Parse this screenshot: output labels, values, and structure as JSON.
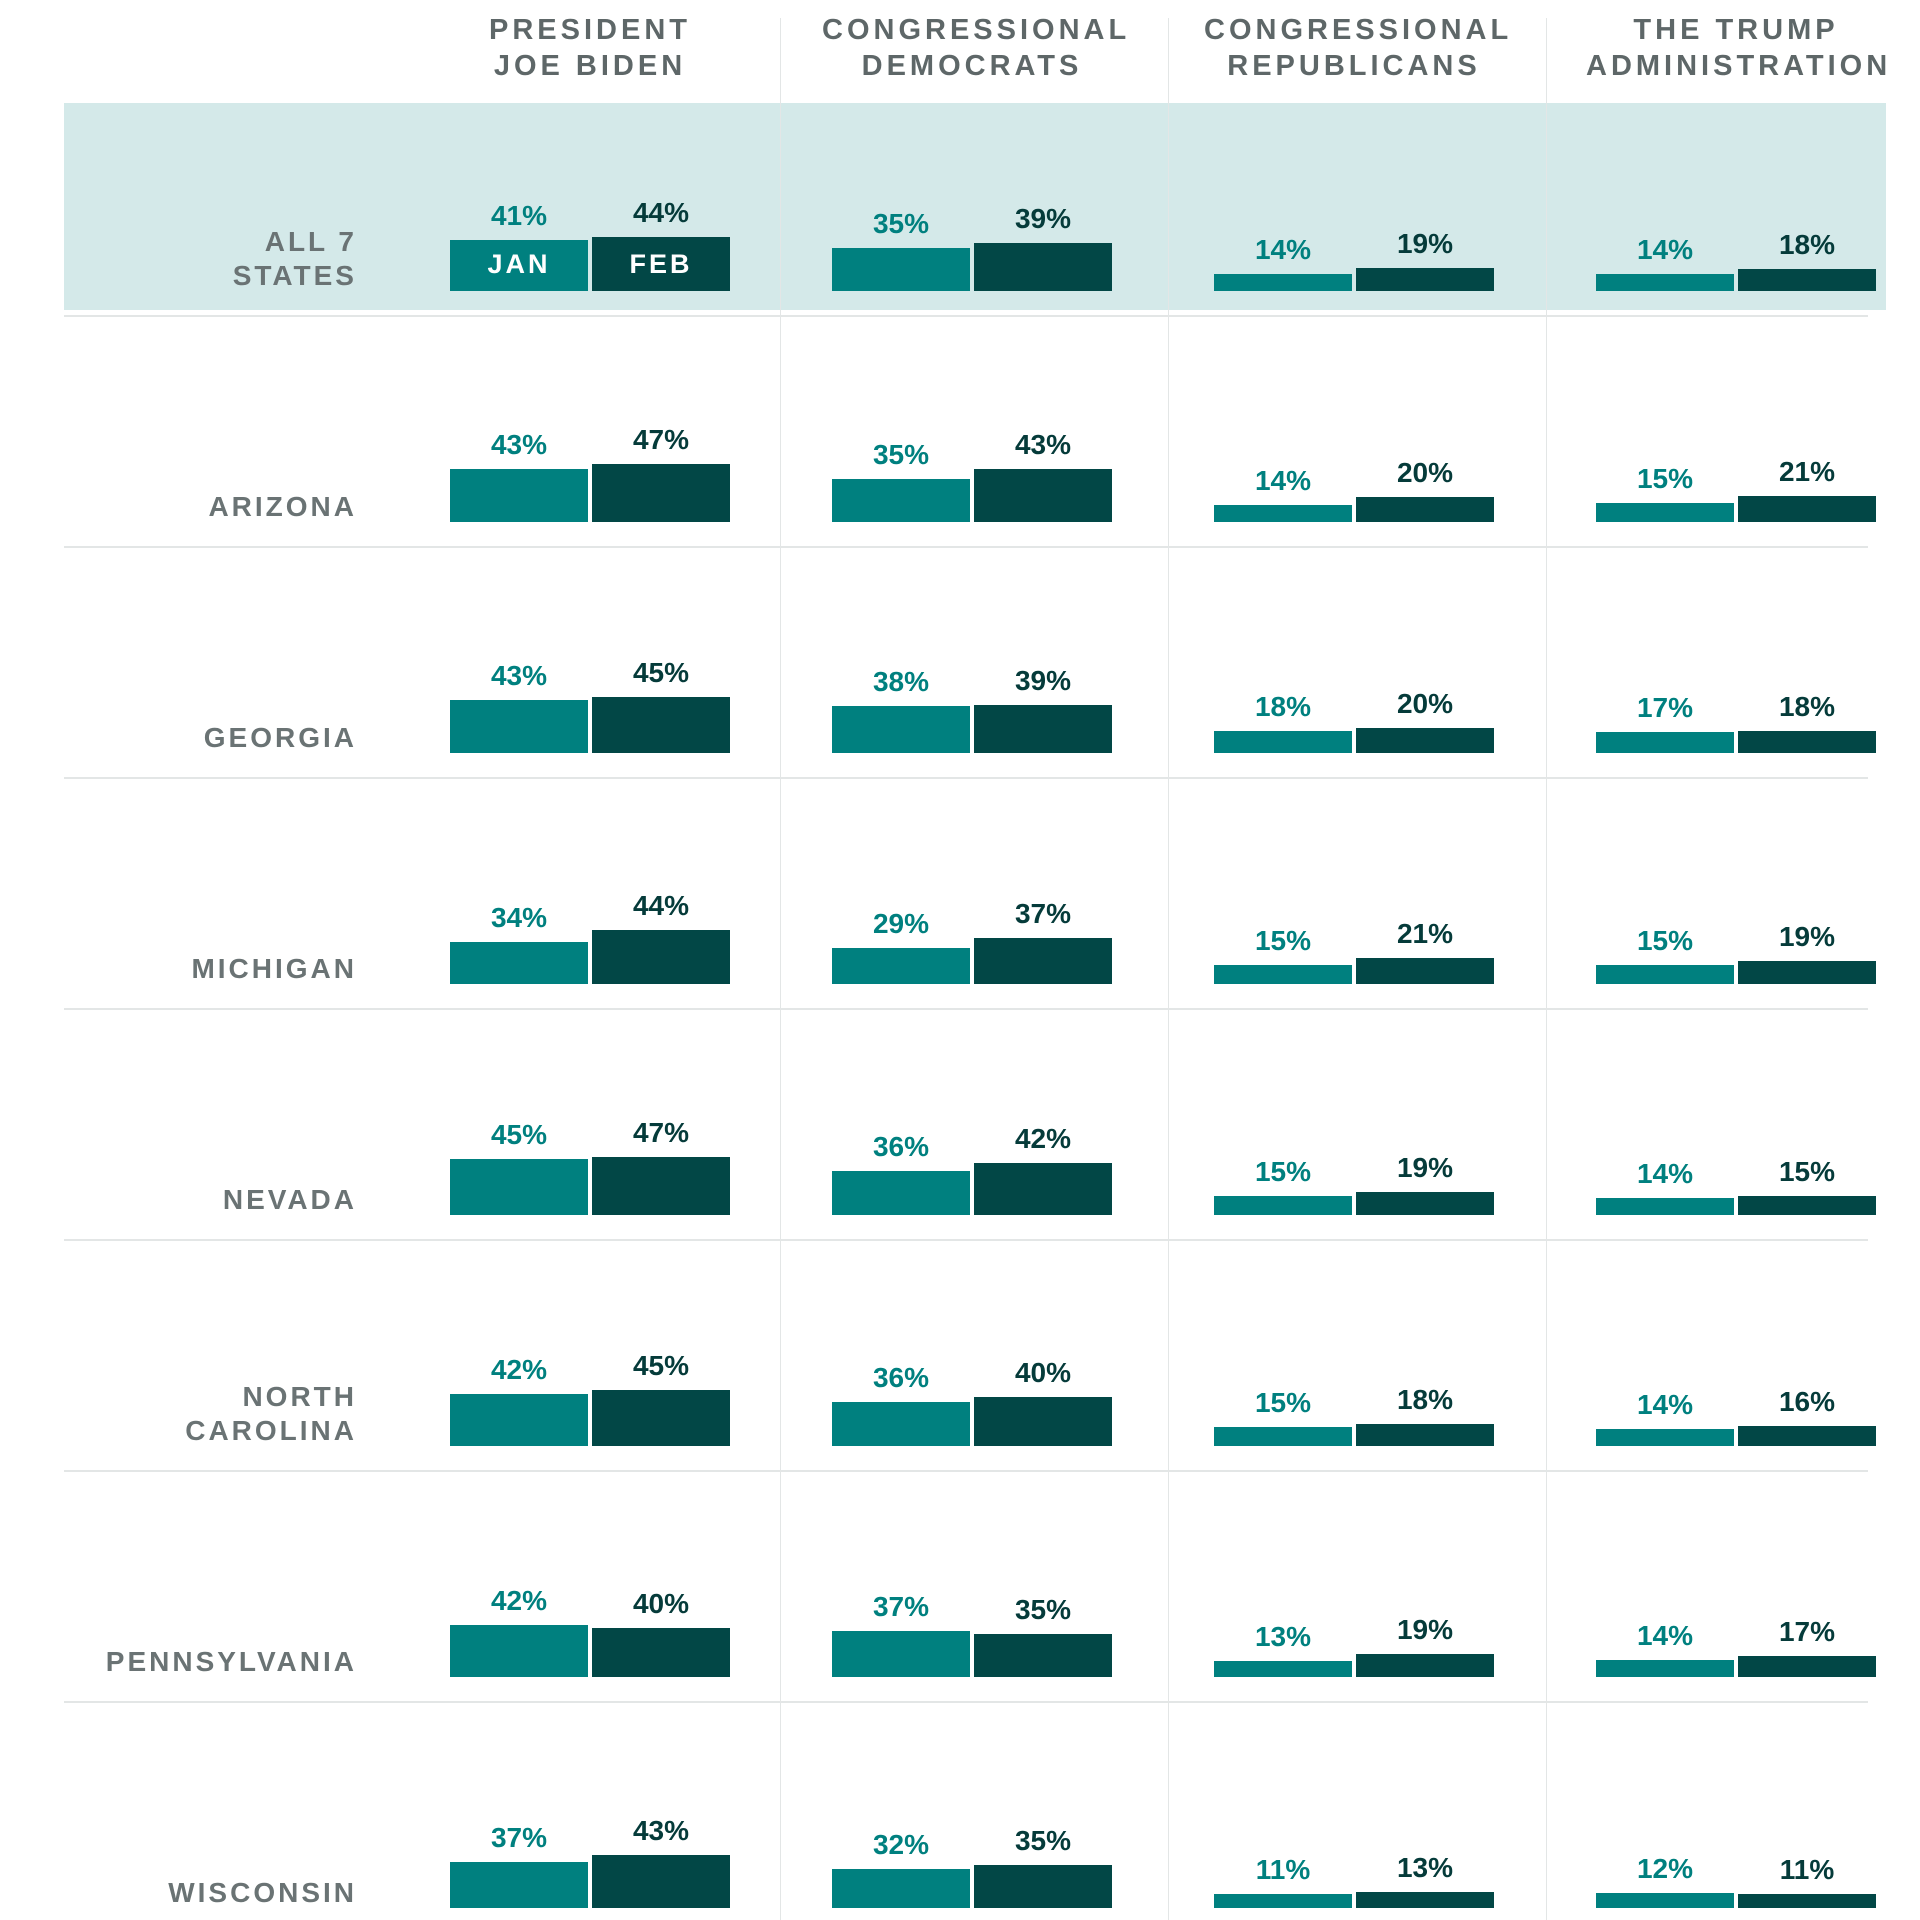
{
  "chart_data": {
    "type": "bar",
    "columns": [
      {
        "label_lines": [
          "PRESIDENT",
          "JOE BIDEN"
        ]
      },
      {
        "label_lines": [
          "CONGRESSIONAL",
          "DEMOCRATS"
        ]
      },
      {
        "label_lines": [
          "CONGRESSIONAL",
          "REPUBLICANS"
        ]
      },
      {
        "label_lines": [
          "THE TRUMP",
          "ADMINISTRATION"
        ]
      }
    ],
    "series": [
      {
        "name": "JAN",
        "color": "#00807f"
      },
      {
        "name": "FEB",
        "color": "#024746"
      }
    ],
    "rows": [
      {
        "label_lines": [
          "ALL 7",
          "STATES"
        ],
        "highlight": true,
        "values": [
          [
            41,
            44
          ],
          [
            35,
            39
          ],
          [
            14,
            19
          ],
          [
            14,
            18
          ]
        ]
      },
      {
        "label_lines": [
          "ARIZONA"
        ],
        "values": [
          [
            43,
            47
          ],
          [
            35,
            43
          ],
          [
            14,
            20
          ],
          [
            15,
            21
          ]
        ]
      },
      {
        "label_lines": [
          "GEORGIA"
        ],
        "values": [
          [
            43,
            45
          ],
          [
            38,
            39
          ],
          [
            18,
            20
          ],
          [
            17,
            18
          ]
        ]
      },
      {
        "label_lines": [
          "MICHIGAN"
        ],
        "values": [
          [
            34,
            44
          ],
          [
            29,
            37
          ],
          [
            15,
            21
          ],
          [
            15,
            19
          ]
        ]
      },
      {
        "label_lines": [
          "NEVADA"
        ],
        "values": [
          [
            45,
            47
          ],
          [
            36,
            42
          ],
          [
            15,
            19
          ],
          [
            14,
            15
          ]
        ]
      },
      {
        "label_lines": [
          "NORTH",
          "CAROLINA"
        ],
        "values": [
          [
            42,
            45
          ],
          [
            36,
            40
          ],
          [
            15,
            18
          ],
          [
            14,
            16
          ]
        ]
      },
      {
        "label_lines": [
          "PENNSYLVANIA"
        ],
        "values": [
          [
            42,
            40
          ],
          [
            37,
            35
          ],
          [
            13,
            19
          ],
          [
            14,
            17
          ]
        ]
      },
      {
        "label_lines": [
          "WISCONSIN"
        ],
        "values": [
          [
            37,
            43
          ],
          [
            32,
            35
          ],
          [
            11,
            13
          ],
          [
            12,
            11
          ]
        ]
      }
    ],
    "value_suffix": "%",
    "ylim": [
      0,
      47
    ],
    "month_labels_in_first_row": [
      "JAN",
      "FEB"
    ],
    "legend": "none",
    "grid": false
  }
}
